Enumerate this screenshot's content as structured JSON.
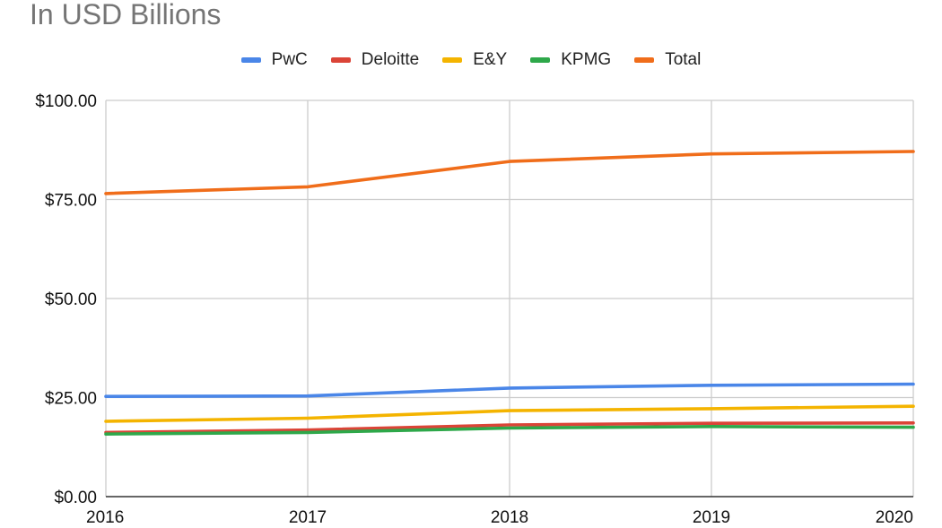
{
  "chart_data": {
    "type": "line",
    "title": "In USD Billions",
    "x": [
      "2016",
      "2017",
      "2018",
      "2019",
      "2020"
    ],
    "ylim": [
      0,
      100
    ],
    "yticks": [
      0,
      25,
      50,
      75,
      100
    ],
    "ytick_labels": [
      "$0.00",
      "$25.00",
      "$50.00",
      "$75.00",
      "$100.00"
    ],
    "grid": true,
    "legend_position": "top",
    "series": [
      {
        "name": "PwC",
        "color": "#4a86e8",
        "values": [
          25.3,
          25.4,
          27.4,
          28.1,
          28.4
        ]
      },
      {
        "name": "Deloitte",
        "color": "#db4437",
        "values": [
          16.2,
          16.8,
          18.1,
          18.5,
          18.6
        ]
      },
      {
        "name": "E&Y",
        "color": "#f4b400",
        "values": [
          19.0,
          19.8,
          21.7,
          22.2,
          22.8
        ]
      },
      {
        "name": "KPMG",
        "color": "#2ea84a",
        "values": [
          15.8,
          16.2,
          17.3,
          17.7,
          17.5
        ]
      },
      {
        "name": "Total",
        "color": "#f06d1a",
        "values": [
          76.5,
          78.2,
          84.6,
          86.5,
          87.1
        ]
      }
    ]
  }
}
